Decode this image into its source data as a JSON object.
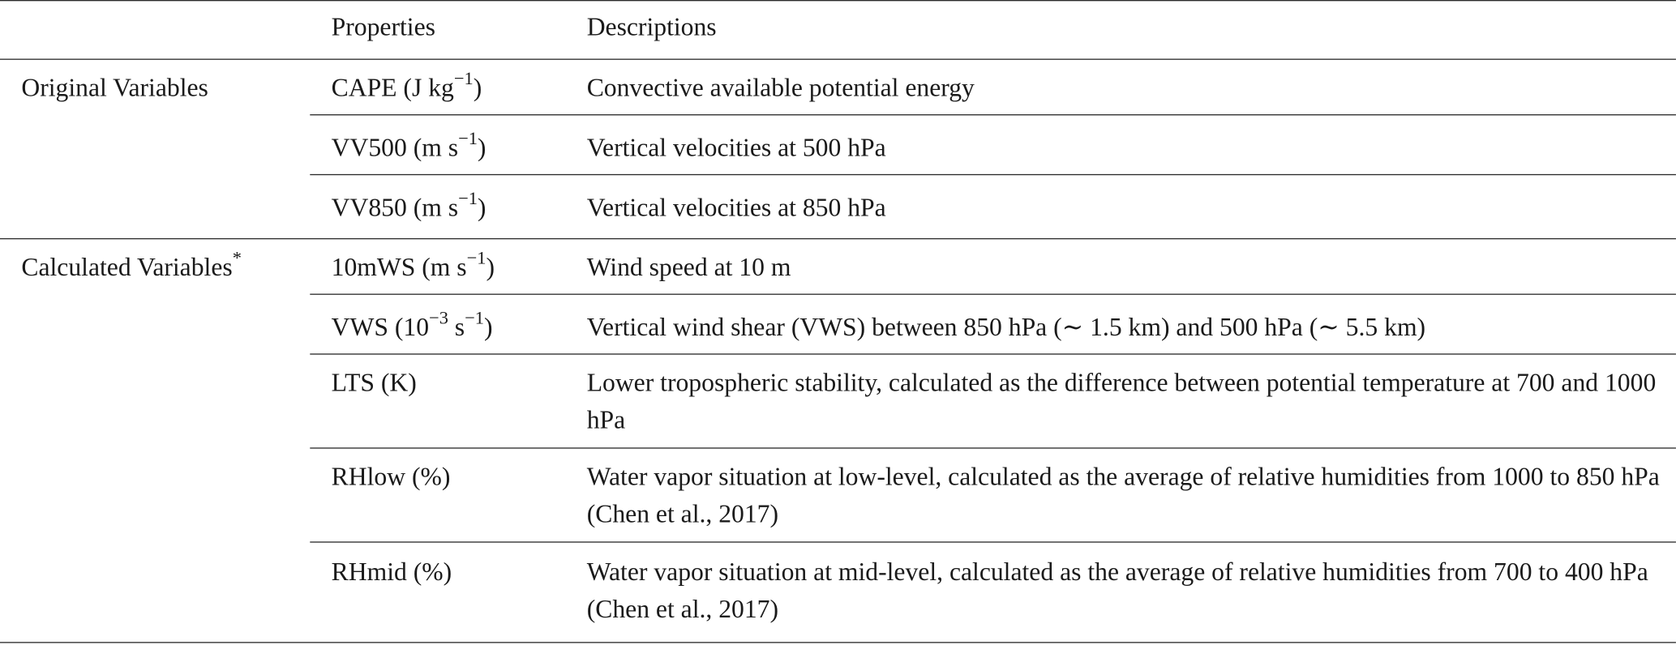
{
  "table": {
    "headers": {
      "group": "",
      "property": "Properties",
      "description": "Descriptions"
    },
    "groups": [
      {
        "label": "Original Variables"
      },
      {
        "label": "Calculated Variables",
        "marker": "*"
      }
    ],
    "rows": [
      {
        "name": "CAPE",
        "unit_pre": "(J kg",
        "unit_sup": "−1",
        "unit_post": ")",
        "unit_sup2": "",
        "unit_post2": "",
        "description": "Convective available potential energy"
      },
      {
        "name": "VV500",
        "unit_pre": "(m s",
        "unit_sup": "−1",
        "unit_post": ")",
        "unit_sup2": "",
        "unit_post2": "",
        "description": "Vertical velocities at 500 hPa"
      },
      {
        "name": "VV850",
        "unit_pre": "(m s",
        "unit_sup": "−1",
        "unit_post": ")",
        "unit_sup2": "",
        "unit_post2": "",
        "description": "Vertical velocities at 850 hPa"
      },
      {
        "name": "10mWS",
        "unit_pre": "(m s",
        "unit_sup": "−1",
        "unit_post": ")",
        "unit_sup2": "",
        "unit_post2": "",
        "description": "Wind speed at 10 m"
      },
      {
        "name": "VWS",
        "unit_pre": "(10",
        "unit_sup": "−3",
        "unit_post": " s",
        "unit_sup2": "−1",
        "unit_post2": ")",
        "description": "Vertical wind shear (VWS) between 850 hPa (∼ 1.5 km) and 500 hPa (∼ 5.5 km)"
      },
      {
        "name": "LTS",
        "unit_pre": "(K)",
        "unit_sup": "",
        "unit_post": "",
        "unit_sup2": "",
        "unit_post2": "",
        "description": "Lower tropospheric stability, calculated as the difference between potential temperature at 700 and 1000 hPa"
      },
      {
        "name": "RHlow",
        "unit_pre": "(%)",
        "unit_sup": "",
        "unit_post": "",
        "unit_sup2": "",
        "unit_post2": "",
        "description": "Water vapor situation at low-level, calculated as the average of relative humidities from 1000 to 850 hPa (Chen et al., 2017)"
      },
      {
        "name": "RHmid",
        "unit_pre": "(%)",
        "unit_sup": "",
        "unit_post": "",
        "unit_sup2": "",
        "unit_post2": "",
        "description": "Water vapor situation at mid-level, calculated as the average of relative humidities from 700 to 400 hPa (Chen et al., 2017)"
      }
    ]
  }
}
